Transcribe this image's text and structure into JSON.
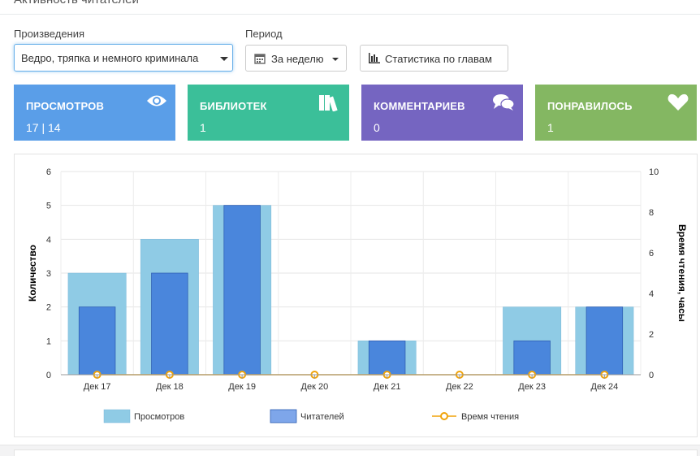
{
  "section_title": "Активность читателей",
  "filters": {
    "work_label": "Произведения",
    "work_value": "Ведро, тряпка и немного криминала",
    "period_label": "Период",
    "period_value": "За неделю",
    "chapters_button": "Статистика по главам"
  },
  "stats": [
    {
      "label": "ПРОСМОТРОВ",
      "value": "17 | 14",
      "color": "#5a9ee8",
      "icon": "eye-icon"
    },
    {
      "label": "БИБЛИОТЕК",
      "value": "1",
      "color": "#3bbf99",
      "icon": "books-icon"
    },
    {
      "label": "КОММЕНТАРИЕВ",
      "value": "0",
      "color": "#7565c1",
      "icon": "comments-icon"
    },
    {
      "label": "ПОНРАВИЛОСЬ",
      "value": "1",
      "color": "#84b762",
      "icon": "heart-icon"
    }
  ],
  "chart_data": {
    "type": "bar",
    "categories": [
      "Дек 17",
      "Дек 18",
      "Дек 19",
      "Дек 20",
      "Дек 21",
      "Дек 22",
      "Дек 23",
      "Дек 24"
    ],
    "series": [
      {
        "name": "Просмотров",
        "values": [
          3,
          4,
          5,
          0,
          1,
          0,
          2,
          2
        ],
        "color": "#8fcbe5",
        "axis": "left"
      },
      {
        "name": "Читателей",
        "values": [
          2,
          3,
          5,
          0,
          1,
          0,
          1,
          2
        ],
        "color": "#4a86dc",
        "axis": "left"
      },
      {
        "name": "Время чтения",
        "values": [
          0,
          0,
          0,
          0,
          0,
          0,
          0,
          0
        ],
        "color": "#f0a30a",
        "axis": "right",
        "type": "line"
      }
    ],
    "ylabel": "Количество",
    "y2label": "Время чтения, часы",
    "ylim": [
      0,
      6
    ],
    "y2lim": [
      0,
      10
    ],
    "yticks": [
      "0",
      "1",
      "2",
      "3",
      "4",
      "5",
      "6"
    ],
    "y2ticks": [
      "0",
      "2",
      "4",
      "6",
      "8",
      "10"
    ],
    "grid": true,
    "legend": "bottom"
  }
}
